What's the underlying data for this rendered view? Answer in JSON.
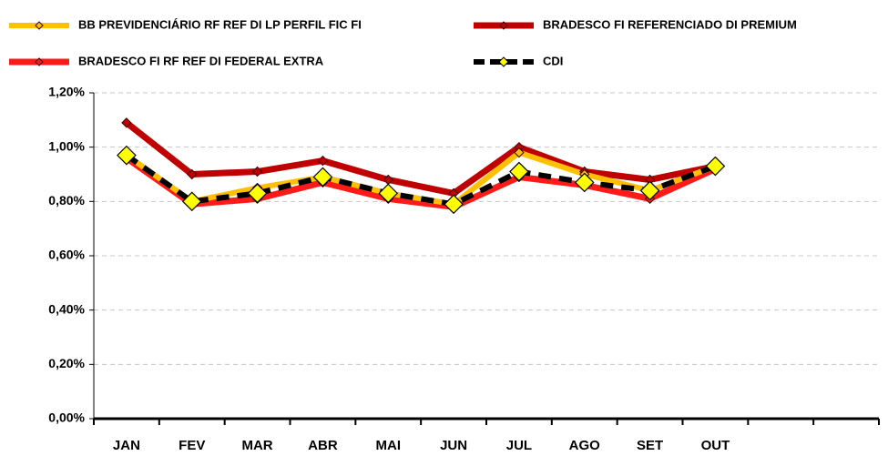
{
  "chart_data": {
    "type": "line",
    "categories": [
      "JAN",
      "FEV",
      "MAR",
      "ABR",
      "MAI",
      "JUN",
      "JUL",
      "AGO",
      "SET",
      "OUT",
      null,
      null
    ],
    "series": [
      {
        "name": "BRADESCO FI REFERENCIADO DI PREMIUM",
        "color": "#c00000",
        "values": [
          1.09,
          0.9,
          0.91,
          0.95,
          0.88,
          0.83,
          1.0,
          0.91,
          0.88,
          0.93,
          null,
          null
        ]
      },
      {
        "name": "BRADESCO FI RF REF DI FEDERAL EXTRA",
        "color": "#ff1a1a",
        "values": [
          0.96,
          0.79,
          0.81,
          0.87,
          0.81,
          0.78,
          0.89,
          0.86,
          0.81,
          0.92,
          null,
          null
        ]
      },
      {
        "name": "BB PREVIDENCIÁRIO RF REF DI LP PERFIL FIC FI",
        "color": "#ffc000",
        "values": [
          0.97,
          0.8,
          0.85,
          0.89,
          0.83,
          0.79,
          0.98,
          0.9,
          0.84,
          0.93,
          null,
          null
        ]
      },
      {
        "name": "CDI",
        "color": "#000000",
        "values": [
          0.97,
          0.8,
          0.83,
          0.89,
          0.83,
          0.79,
          0.91,
          0.87,
          0.84,
          0.93,
          null,
          null
        ]
      }
    ],
    "ylim": [
      0,
      1.2
    ],
    "yticks": [
      {
        "value": 0,
        "label": "0,00%"
      },
      {
        "value": 0.2,
        "label": "0,20%"
      },
      {
        "value": 0.4,
        "label": "0,40%"
      },
      {
        "value": 0.6,
        "label": "0,60%"
      },
      {
        "value": 0.8,
        "label": "0,80%"
      },
      {
        "value": 1.0,
        "label": "1,00%"
      },
      {
        "value": 1.2,
        "label": "1,20%"
      }
    ],
    "grid": true
  }
}
